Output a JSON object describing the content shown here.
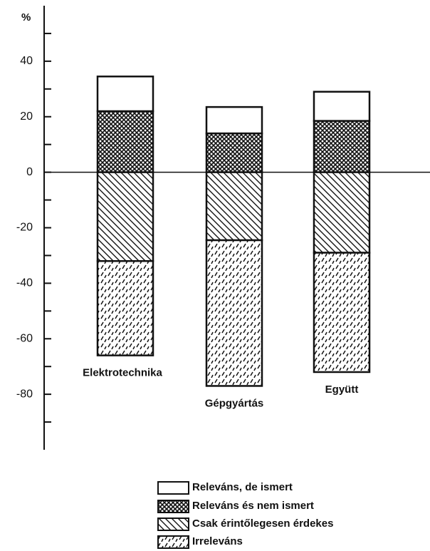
{
  "chart_data": {
    "type": "stacked_bar",
    "y_label": "%",
    "categories": [
      "Elektrotechnika",
      "Gépgyártás",
      "Együtt"
    ],
    "series": [
      {
        "name": "Releváns és nem ismert",
        "pattern": "crosshatch",
        "values": [
          22,
          14,
          18.5
        ]
      },
      {
        "name": "Releváns, de ismert",
        "pattern": "none",
        "values": [
          12.5,
          9.5,
          10.5
        ]
      },
      {
        "name": "Csak érintőlegesen érdekes",
        "pattern": "diagonal",
        "values": [
          -32,
          -24.5,
          -29
        ]
      },
      {
        "name": "Irreleváns",
        "pattern": "dashed",
        "values": [
          -34,
          -52.5,
          -43
        ]
      }
    ],
    "legend_order": [
      1,
      0,
      2,
      3
    ],
    "color": "#111111",
    "ylim": [
      -100,
      60
    ],
    "yticks": [
      -80,
      -60,
      -40,
      -20,
      0,
      20,
      40
    ],
    "yminor": [
      -90,
      -70,
      -50,
      -30,
      -10,
      10,
      30,
      50
    ]
  }
}
